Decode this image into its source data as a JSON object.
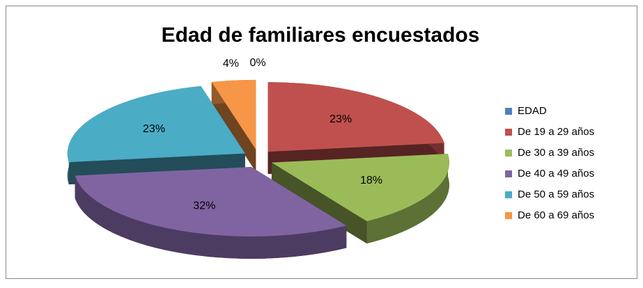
{
  "chart_data": {
    "type": "pie",
    "title": "Edad de familiares encuestados",
    "categories": [
      "EDAD",
      "De 19 a 29 años",
      "De 30 a 39 años",
      "De 40 a 49 años",
      "De 50 a 59 años",
      "De 60 a 69 años"
    ],
    "values": [
      0,
      23,
      18,
      32,
      23,
      4
    ],
    "value_labels": [
      "0%",
      "23%",
      "18%",
      "32%",
      "23%",
      "4%"
    ],
    "colors": [
      "#4f81bd",
      "#c0504d",
      "#9bbb59",
      "#8064a2",
      "#4bacc6",
      "#f79646"
    ],
    "legend": "right"
  }
}
